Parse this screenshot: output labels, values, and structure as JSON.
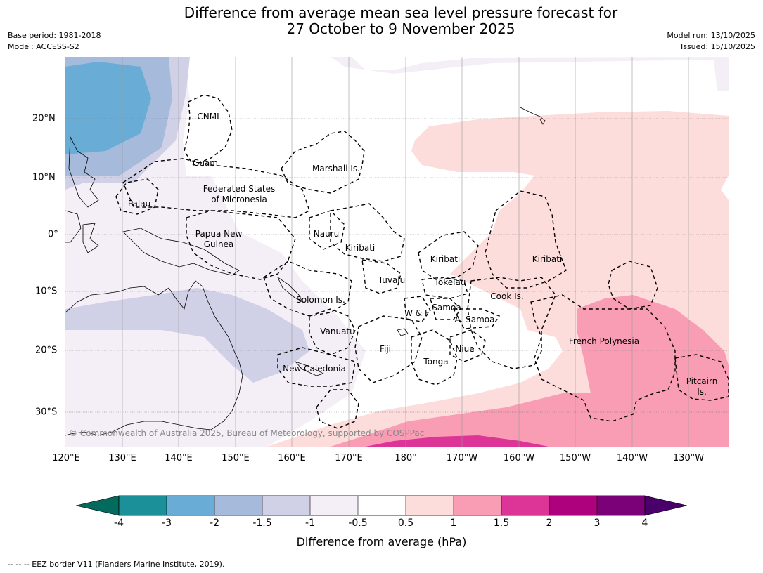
{
  "title_line1": "Difference from average mean sea level pressure forecast for",
  "title_line2": "27 October to 9 November 2025",
  "base_period": "Base period: 1981-2018",
  "model": "Model: ACCESS-S2",
  "model_run": "Model run: 13/10/2025",
  "issued": "Issued: 15/10/2025",
  "copyright": "© Commonwealth of Australia 2025, Bureau of Meteorology, supported by COSPPac",
  "footer": "--  --  -- EEZ border V11 (Flanders Marine Institute, 2019).",
  "map": {
    "lon_labels": [
      "120°E",
      "130°E",
      "140°E",
      "150°E",
      "160°E",
      "170°E",
      "180°",
      "170°W",
      "160°W",
      "150°W",
      "140°W",
      "130°W"
    ],
    "lat_labels": [
      "20°N",
      "10°N",
      "0°",
      "10°S",
      "20°S",
      "30°S"
    ],
    "places": {
      "cnmi": "CNMI",
      "guam": "Guam",
      "marshall": "Marshall Is.",
      "fsm1": "Federated States",
      "fsm2": "of Micronesia",
      "palau": "Palau",
      "png1": "Papua New",
      "png2": "Guinea",
      "nauru": "Nauru",
      "kiribati_w": "Kiribati",
      "kiribati_c": "Kiribati",
      "kiribati_e": "Kiribati",
      "tuvalu": "Tuvalu",
      "tokelau": "Tokelau",
      "cook": "Cook Is.",
      "solomon": "Solomon Is.",
      "wf": "W & F",
      "samoa": "Samoa",
      "asamoa": "A. Samoa",
      "vanuatu": "Vanuatu",
      "fiji": "Fiji",
      "niue": "Niue",
      "tonga": "Tonga",
      "newcal": "New Caledonia",
      "frpoly": "French Polynesia",
      "pitcairn1": "Pitcairn",
      "pitcairn2": "Is."
    }
  },
  "colorbar": {
    "label": "Difference from average (hPa)",
    "ticks": [
      "-4",
      "-3",
      "-2",
      "-1.5",
      "-1",
      "-0.5",
      "0.5",
      "1",
      "1.5",
      "2",
      "3",
      "4"
    ],
    "colors": {
      "lt_minus4": "#036b5e",
      "c_m4_m3": "#1b9099",
      "c_m3_m2": "#69acd6",
      "c_m2_m15": "#a6bbdb",
      "c_m15_m1": "#d0d1e6",
      "c_m1_m05": "#f4eef7",
      "c_neutral": "#ffffff",
      "c_05_1": "#fddcdc",
      "c_1_15": "#f99db5",
      "c_15_2": "#dd3497",
      "c_2_3": "#ae017e",
      "c_3_4": "#7a0177",
      "gt_4": "#49006a"
    }
  }
}
